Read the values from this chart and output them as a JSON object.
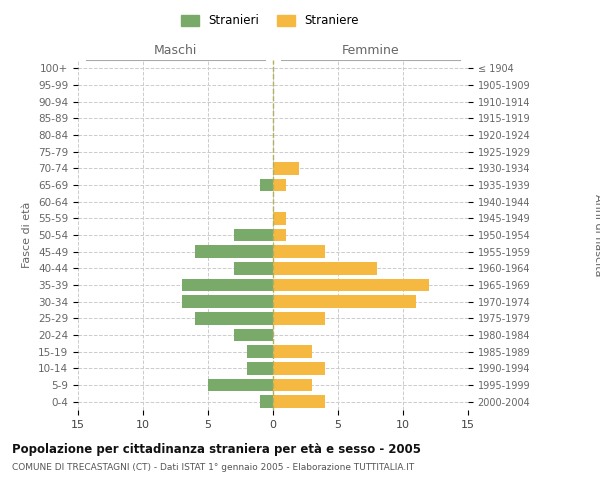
{
  "age_groups": [
    "0-4",
    "5-9",
    "10-14",
    "15-19",
    "20-24",
    "25-29",
    "30-34",
    "35-39",
    "40-44",
    "45-49",
    "50-54",
    "55-59",
    "60-64",
    "65-69",
    "70-74",
    "75-79",
    "80-84",
    "85-89",
    "90-94",
    "95-99",
    "100+"
  ],
  "birth_years": [
    "2000-2004",
    "1995-1999",
    "1990-1994",
    "1985-1989",
    "1980-1984",
    "1975-1979",
    "1970-1974",
    "1965-1969",
    "1960-1964",
    "1955-1959",
    "1950-1954",
    "1945-1949",
    "1940-1944",
    "1935-1939",
    "1930-1934",
    "1925-1929",
    "1920-1924",
    "1915-1919",
    "1910-1914",
    "1905-1909",
    "≤ 1904"
  ],
  "maschi": [
    1,
    5,
    2,
    2,
    3,
    6,
    7,
    7,
    3,
    6,
    3,
    0,
    0,
    1,
    0,
    0,
    0,
    0,
    0,
    0,
    0
  ],
  "femmine": [
    4,
    3,
    4,
    3,
    0,
    4,
    11,
    12,
    8,
    4,
    1,
    1,
    0,
    1,
    2,
    0,
    0,
    0,
    0,
    0,
    0
  ],
  "color_maschi": "#7aaa6a",
  "color_femmine": "#f5b942",
  "title": "Popolazione per cittadinanza straniera per età e sesso - 2005",
  "subtitle": "COMUNE DI TRECASTAGNI (CT) - Dati ISTAT 1° gennaio 2005 - Elaborazione TUTTITALIA.IT",
  "label_left": "Maschi",
  "label_right": "Femmine",
  "ylabel_left": "Fasce di età",
  "ylabel_right": "Anni di nascita",
  "legend_maschi": "Stranieri",
  "legend_femmine": "Straniere",
  "xlim": 15,
  "background_color": "#ffffff",
  "grid_color": "#cccccc"
}
